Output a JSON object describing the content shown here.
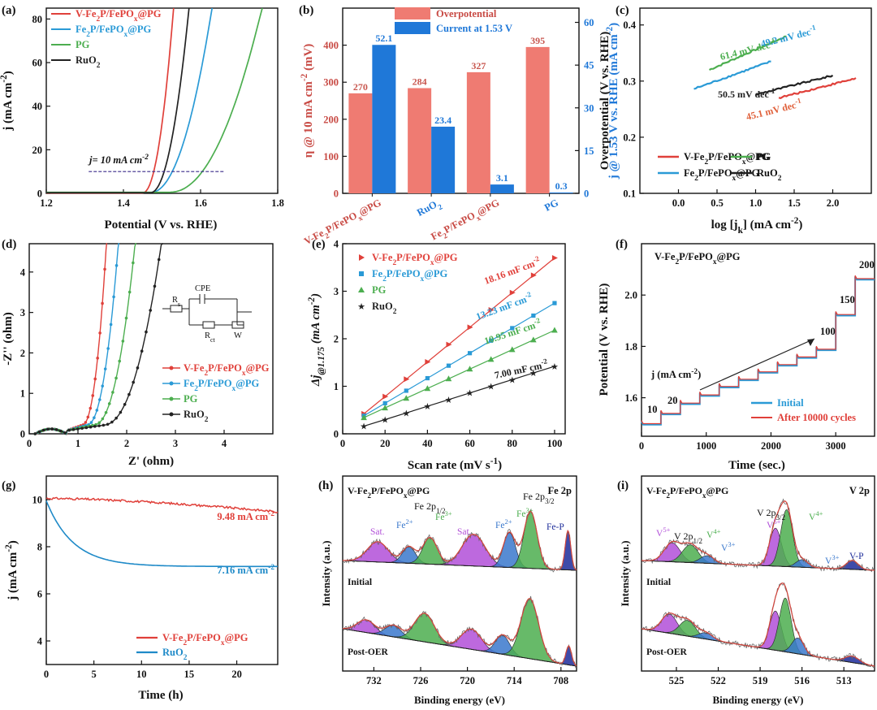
{
  "colors": {
    "red": "#e0403a",
    "blue": "#2a9ad6",
    "green": "#4cae4f",
    "black": "#222222",
    "bar_red": "#ef7b72",
    "bar_blue": "#1f78d8",
    "purple": "#b14fd8",
    "navy": "#1d2c9a",
    "lightgreen": "#55c04a",
    "tealblue": "#3a78cc"
  },
  "chart_data": [
    {
      "panel": "(a)",
      "type": "line",
      "xlabel": "Potential (V vs. RHE)",
      "ylabel": "j (mA cm-2)",
      "xlim": [
        1.2,
        1.8
      ],
      "ylim": [
        0,
        85
      ],
      "xticks": [
        1.2,
        1.4,
        1.6,
        1.8
      ],
      "yticks": [
        0,
        20,
        40,
        60,
        80
      ],
      "annotation": "j= 10 mA cm-2",
      "ref_line_y": 10,
      "ref_line_x": [
        1.31,
        1.66
      ],
      "series": [
        {
          "name": "V-Fe2P/FePOx@PG",
          "color": "red",
          "onset": 1.45,
          "end": 1.53,
          "base": 0.2
        },
        {
          "name": "Fe2P/FePOx@PG",
          "color": "blue",
          "onset": 1.47,
          "end": 1.63,
          "base": 0.4
        },
        {
          "name": "PG",
          "color": "green",
          "onset": 1.52,
          "end": 1.76,
          "base": 0.5
        },
        {
          "name": "RuO2",
          "color": "black",
          "onset": 1.47,
          "end": 1.57,
          "base": 0.3
        }
      ],
      "legend": [
        "V-Fe2P/FePOx@PG",
        "Fe2P/FePOx@PG",
        "PG",
        "RuO2"
      ]
    },
    {
      "panel": "(b)",
      "type": "bar",
      "legend": [
        "Overpotential",
        "Current at 1.53 V"
      ],
      "categories": [
        "V-Fe2P/FePOx@PG",
        "RuO2",
        "Fe2P/FePOx@PG",
        "PG"
      ],
      "series": [
        {
          "name": "Overpotential",
          "axis": "left",
          "values": [
            270,
            284,
            327,
            395
          ],
          "labels": [
            "270",
            "284",
            "327",
            "395"
          ]
        },
        {
          "name": "Current at 1.53 V",
          "axis": "right",
          "values": [
            52.1,
            23.4,
            3.1,
            0.3
          ],
          "labels": [
            "52.1",
            "23.4",
            "3.1",
            "0.3"
          ]
        }
      ],
      "ylabel_left": "η @ 10 mA cm-2 (mV)",
      "ylabel_right": "j @ 1.53 V vs. RHE (mA cm-2)",
      "ylim_left": [
        0,
        500
      ],
      "ylim_right": [
        0,
        65
      ],
      "yticks_left": [
        0,
        100,
        200,
        300,
        400
      ],
      "yticks_right": [
        0,
        15,
        30,
        45,
        60
      ]
    },
    {
      "panel": "(c)",
      "type": "line",
      "xlabel": "log [jk] (mA cm-2)",
      "ylabel": "Overpotential (V vs. RHE)",
      "xlim": [
        -0.5,
        2.5
      ],
      "ylim": [
        0.1,
        0.43
      ],
      "xticks": [
        0.0,
        0.5,
        1.0,
        1.5,
        2.0
      ],
      "yticks": [
        0.1,
        0.2,
        0.3,
        0.4
      ],
      "xtick_labels": [
        "0.0",
        "0.5",
        "1.0",
        "1.5",
        "2.0"
      ],
      "ytick_labels": [
        "0.1",
        "0.2",
        "0.3",
        "0.4"
      ],
      "series": [
        {
          "name": "PG",
          "color": "green",
          "x": [
            0.4,
            1.4
          ],
          "y": [
            0.32,
            0.38
          ],
          "slope_label": "61.4 mV dec-1"
        },
        {
          "name": "Fe2P/FePOx@PG",
          "color": "blue",
          "x": [
            0.2,
            1.2
          ],
          "y": [
            0.286,
            0.335
          ],
          "slope_label": "49.2 mV dec-1"
        },
        {
          "name": "RuO2",
          "color": "black",
          "x": [
            1.0,
            2.0
          ],
          "y": [
            0.276,
            0.31
          ],
          "slope_label": "50.5 mV dec-1"
        },
        {
          "name": "V-Fe2P/FePOx@PG",
          "color": "red",
          "x": [
            1.3,
            2.3
          ],
          "y": [
            0.27,
            0.305
          ],
          "slope_label": "45.1 mV dec-1"
        }
      ],
      "legend": [
        "V-Fe2P/FePOx@PG",
        "PG",
        "Fe2P/FePOx@PG",
        "RuO2"
      ]
    },
    {
      "panel": "(d)",
      "type": "line",
      "xlabel": "Z' (ohm)",
      "ylabel": "-Z'' (ohm)",
      "xlim": [
        0,
        5
      ],
      "ylim": [
        0,
        4.7
      ],
      "xticks": [
        0,
        1,
        2,
        3,
        4
      ],
      "yticks": [
        0,
        1,
        2,
        3,
        4
      ],
      "series": [
        {
          "name": "V-Fe2P/FePOx@PG",
          "color": "red",
          "marker": "plus",
          "knee": 1.1,
          "top": 1.6
        },
        {
          "name": "Fe2P/FePOx@PG",
          "color": "blue",
          "marker": "tri",
          "knee": 1.2,
          "top": 1.85
        },
        {
          "name": "PG",
          "color": "green",
          "marker": "tri",
          "knee": 1.35,
          "top": 2.2
        },
        {
          "name": "RuO2",
          "color": "black",
          "marker": "dot",
          "knee": 1.55,
          "top": 2.75
        }
      ],
      "circuit": {
        "cpe": "CPE",
        "rs": "Rs",
        "rct": "Rct",
        "w": "W"
      },
      "legend": [
        "V-Fe2P/FePOx@PG",
        "Fe2P/FePOx@PG",
        "PG",
        "RuO2"
      ]
    },
    {
      "panel": "(e)",
      "type": "scatter",
      "xlabel": "Scan rate (mV s-1)",
      "ylabel": "Δj@1.175 (mA cm-2)",
      "xlim": [
        0,
        105
      ],
      "ylim": [
        0,
        4
      ],
      "xticks": [
        0,
        20,
        40,
        60,
        80,
        100
      ],
      "yticks": [
        0,
        1,
        2,
        3,
        4
      ],
      "x": [
        10,
        20,
        30,
        40,
        50,
        60,
        70,
        80,
        90,
        100
      ],
      "series": [
        {
          "name": "V-Fe2P/FePOx@PG",
          "color": "red",
          "marker": "tri-right",
          "y0": 0.42,
          "y1": 3.7,
          "slope_label": "18.16 mF cm-2"
        },
        {
          "name": "Fe2P/FePOx@PG",
          "color": "blue",
          "marker": "square",
          "y0": 0.38,
          "y1": 2.75,
          "slope_label": "13.23 mF cm-2"
        },
        {
          "name": "PG",
          "color": "green",
          "marker": "tri",
          "y0": 0.34,
          "y1": 2.18,
          "slope_label": "10.95 mF cm-2"
        },
        {
          "name": "RuO2",
          "color": "black",
          "marker": "star",
          "y0": 0.16,
          "y1": 1.42,
          "slope_label": "7.00 mF cm-2"
        }
      ],
      "legend": [
        "V-Fe2P/FePOx@PG",
        "Fe2P/FePOx@PG",
        "PG",
        "RuO2"
      ]
    },
    {
      "panel": "(f)",
      "type": "line",
      "title": "V-Fe2P/FePOx@PG",
      "xlabel": "Time (sec.)",
      "ylabel": "Potential (V vs. RHE)",
      "xlim": [
        0,
        3600
      ],
      "ylim": [
        1.45,
        2.2
      ],
      "xticks": [
        0,
        1000,
        2000,
        3000
      ],
      "yticks": [
        1.6,
        1.8,
        2.0
      ],
      "xtick_labels": [
        "0",
        "1000",
        "2000",
        "3000"
      ],
      "ytick_labels": [
        "1.6",
        "1.8",
        "2.0"
      ],
      "step_times": [
        0,
        300,
        600,
        900,
        1200,
        1500,
        1800,
        2100,
        2400,
        2700,
        3000,
        3300
      ],
      "step_potentials": [
        1.495,
        1.535,
        1.575,
        1.607,
        1.64,
        1.668,
        1.697,
        1.725,
        1.755,
        1.785,
        1.92,
        2.06
      ],
      "annotations": [
        "10",
        "20",
        "100",
        "150",
        "200"
      ],
      "arrow_label": "j (mA cm-2)",
      "legend": [
        "Initial",
        "After 10000 cycles"
      ]
    },
    {
      "panel": "(g)",
      "type": "line",
      "xlabel": "Time (h)",
      "ylabel": "j (mA cm-2)",
      "xlim": [
        0,
        24.3
      ],
      "ylim": [
        3,
        11
      ],
      "xticks": [
        0,
        5,
        10,
        15,
        20
      ],
      "yticks": [
        4,
        6,
        8,
        10
      ],
      "series": [
        {
          "name": "V-Fe2P/FePOx@PG",
          "color": "red",
          "start": 10.05,
          "end": 9.48,
          "label": "9.48 mA cm-2"
        },
        {
          "name": "RuO2",
          "color": "blue",
          "start": 9.95,
          "end": 7.16,
          "label": "7.16 mA cm-2"
        }
      ],
      "legend": [
        "V-Fe2P/FePOx@PG",
        "RuO2"
      ]
    },
    {
      "panel": "(h)",
      "type": "area",
      "title": "Fe 2p",
      "sample": "V-Fe2P/FePOx@PG",
      "xlabel": "Binding energy (eV)",
      "ylabel": "Intensity (a.u.)",
      "xlim": [
        736,
        706
      ],
      "xticks": [
        732,
        726,
        720,
        714,
        708
      ],
      "conditions": [
        "Initial",
        "Post-OER"
      ],
      "labels": [
        "Sat.",
        "Fe2+",
        "Fe3+",
        "Sat.",
        "Fe2+",
        "Fe3+",
        "Fe-P",
        "Fe 2p1/2",
        "Fe 2p3/2"
      ],
      "peaks_initial": [
        {
          "c": 731.5,
          "w": 1.9,
          "h": 0.32,
          "color": "purple"
        },
        {
          "c": 727.5,
          "w": 1.2,
          "h": 0.26,
          "color": "tealblue"
        },
        {
          "c": 724.8,
          "w": 1.3,
          "h": 0.42,
          "color": "green"
        },
        {
          "c": 719.2,
          "w": 2.1,
          "h": 0.5,
          "color": "purple"
        },
        {
          "c": 714.6,
          "w": 1.1,
          "h": 0.55,
          "color": "tealblue"
        },
        {
          "c": 711.9,
          "w": 1.2,
          "h": 0.9,
          "color": "green"
        },
        {
          "c": 707.1,
          "w": 0.5,
          "h": 0.62,
          "color": "navy"
        }
      ],
      "peaks_post": [
        {
          "c": 733.0,
          "w": 1.6,
          "h": 0.2,
          "color": "purple"
        },
        {
          "c": 729.5,
          "w": 1.5,
          "h": 0.18,
          "color": "tealblue"
        },
        {
          "c": 725.5,
          "w": 1.8,
          "h": 0.45,
          "color": "green"
        },
        {
          "c": 719.5,
          "w": 1.8,
          "h": 0.32,
          "color": "purple"
        },
        {
          "c": 715.5,
          "w": 1.3,
          "h": 0.3,
          "color": "tealblue"
        },
        {
          "c": 712.0,
          "w": 1.6,
          "h": 0.95,
          "color": "green"
        },
        {
          "c": 707.0,
          "w": 0.5,
          "h": 0.3,
          "color": "navy"
        }
      ]
    },
    {
      "panel": "(i)",
      "type": "area",
      "title": "V 2p",
      "sample": "V-Fe2P/FePOx@PG",
      "xlabel": "Binding energy (eV)",
      "ylabel": "Intensity (a.u.)",
      "xlim": [
        527.5,
        510.8
      ],
      "xticks": [
        525,
        522,
        519,
        516,
        513
      ],
      "conditions": [
        "Initial",
        "Post-OER"
      ],
      "labels": [
        "V 2p1/2",
        "V5+",
        "V4+",
        "V3+",
        "V5+",
        "V4+",
        "V3+",
        "V-P",
        "V 2p3/2"
      ],
      "peaks_initial": [
        {
          "c": 525.3,
          "w": 0.8,
          "h": 0.3,
          "color": "purple"
        },
        {
          "c": 524.0,
          "w": 0.8,
          "h": 0.28,
          "color": "green"
        },
        {
          "c": 522.8,
          "w": 0.7,
          "h": 0.12,
          "color": "tealblue"
        },
        {
          "c": 517.9,
          "w": 0.6,
          "h": 0.6,
          "color": "purple"
        },
        {
          "c": 517.1,
          "w": 0.6,
          "h": 0.9,
          "color": "green"
        },
        {
          "c": 516.0,
          "w": 0.6,
          "h": 0.12,
          "color": "tealblue"
        },
        {
          "c": 512.4,
          "w": 0.6,
          "h": 0.14,
          "color": "navy"
        }
      ],
      "peaks_post": [
        {
          "c": 525.5,
          "w": 0.8,
          "h": 0.3,
          "color": "purple"
        },
        {
          "c": 524.2,
          "w": 0.8,
          "h": 0.25,
          "color": "green"
        },
        {
          "c": 522.9,
          "w": 0.7,
          "h": 0.1,
          "color": "tealblue"
        },
        {
          "c": 517.9,
          "w": 0.6,
          "h": 0.62,
          "color": "purple"
        },
        {
          "c": 517.2,
          "w": 0.6,
          "h": 0.85,
          "color": "green"
        },
        {
          "c": 516.3,
          "w": 0.6,
          "h": 0.25,
          "color": "tealblue"
        },
        {
          "c": 512.4,
          "w": 0.7,
          "h": 0.1,
          "color": "navy"
        }
      ]
    }
  ]
}
